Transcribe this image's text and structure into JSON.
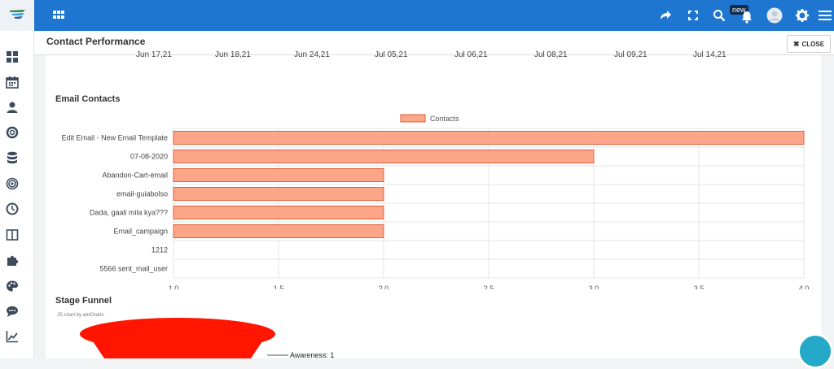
{
  "header": {
    "badge": "new"
  },
  "modal": {
    "title": "Contact Performance",
    "close_label": "CLOSE"
  },
  "previous_chart": {
    "x_labels": [
      "Jun 17,21",
      "Jun 18,21",
      "Jun 24,21",
      "Jul 05,21",
      "Jul 06,21",
      "Jul 08,21",
      "Jul 09,21",
      "Jul 14,21"
    ]
  },
  "email_section": {
    "title": "Email Contacts"
  },
  "chart_data": {
    "type": "bar",
    "orientation": "horizontal",
    "categories": [
      "Edit Email - New Email Template",
      "07-08-2020",
      "Abandon-Cart-email",
      "email-guiabolso",
      "Dada, gaali mila kya???",
      "Email_campaign",
      "1212",
      "5566 sent_mail_user"
    ],
    "series": [
      {
        "name": "Contacts",
        "values": [
          4,
          3,
          2,
          2,
          2,
          2,
          1,
          1
        ]
      }
    ],
    "xlim": [
      1.0,
      4.0
    ],
    "x_ticks": [
      "1.0",
      "1.5",
      "2.0",
      "2.5",
      "3.0",
      "3.5",
      "4.0"
    ],
    "grid": true,
    "legend": "top-center",
    "colors": {
      "bar_fill": "#fba589",
      "bar_stroke": "#e0603a"
    }
  },
  "funnel_section": {
    "title": "Stage Funnel",
    "watermark": "JS chart by amCharts",
    "first_label": "Awareness: 1",
    "color": "#ff1500"
  },
  "colors": {
    "topbar": "#1e76d0",
    "panel": "#ffffff"
  }
}
